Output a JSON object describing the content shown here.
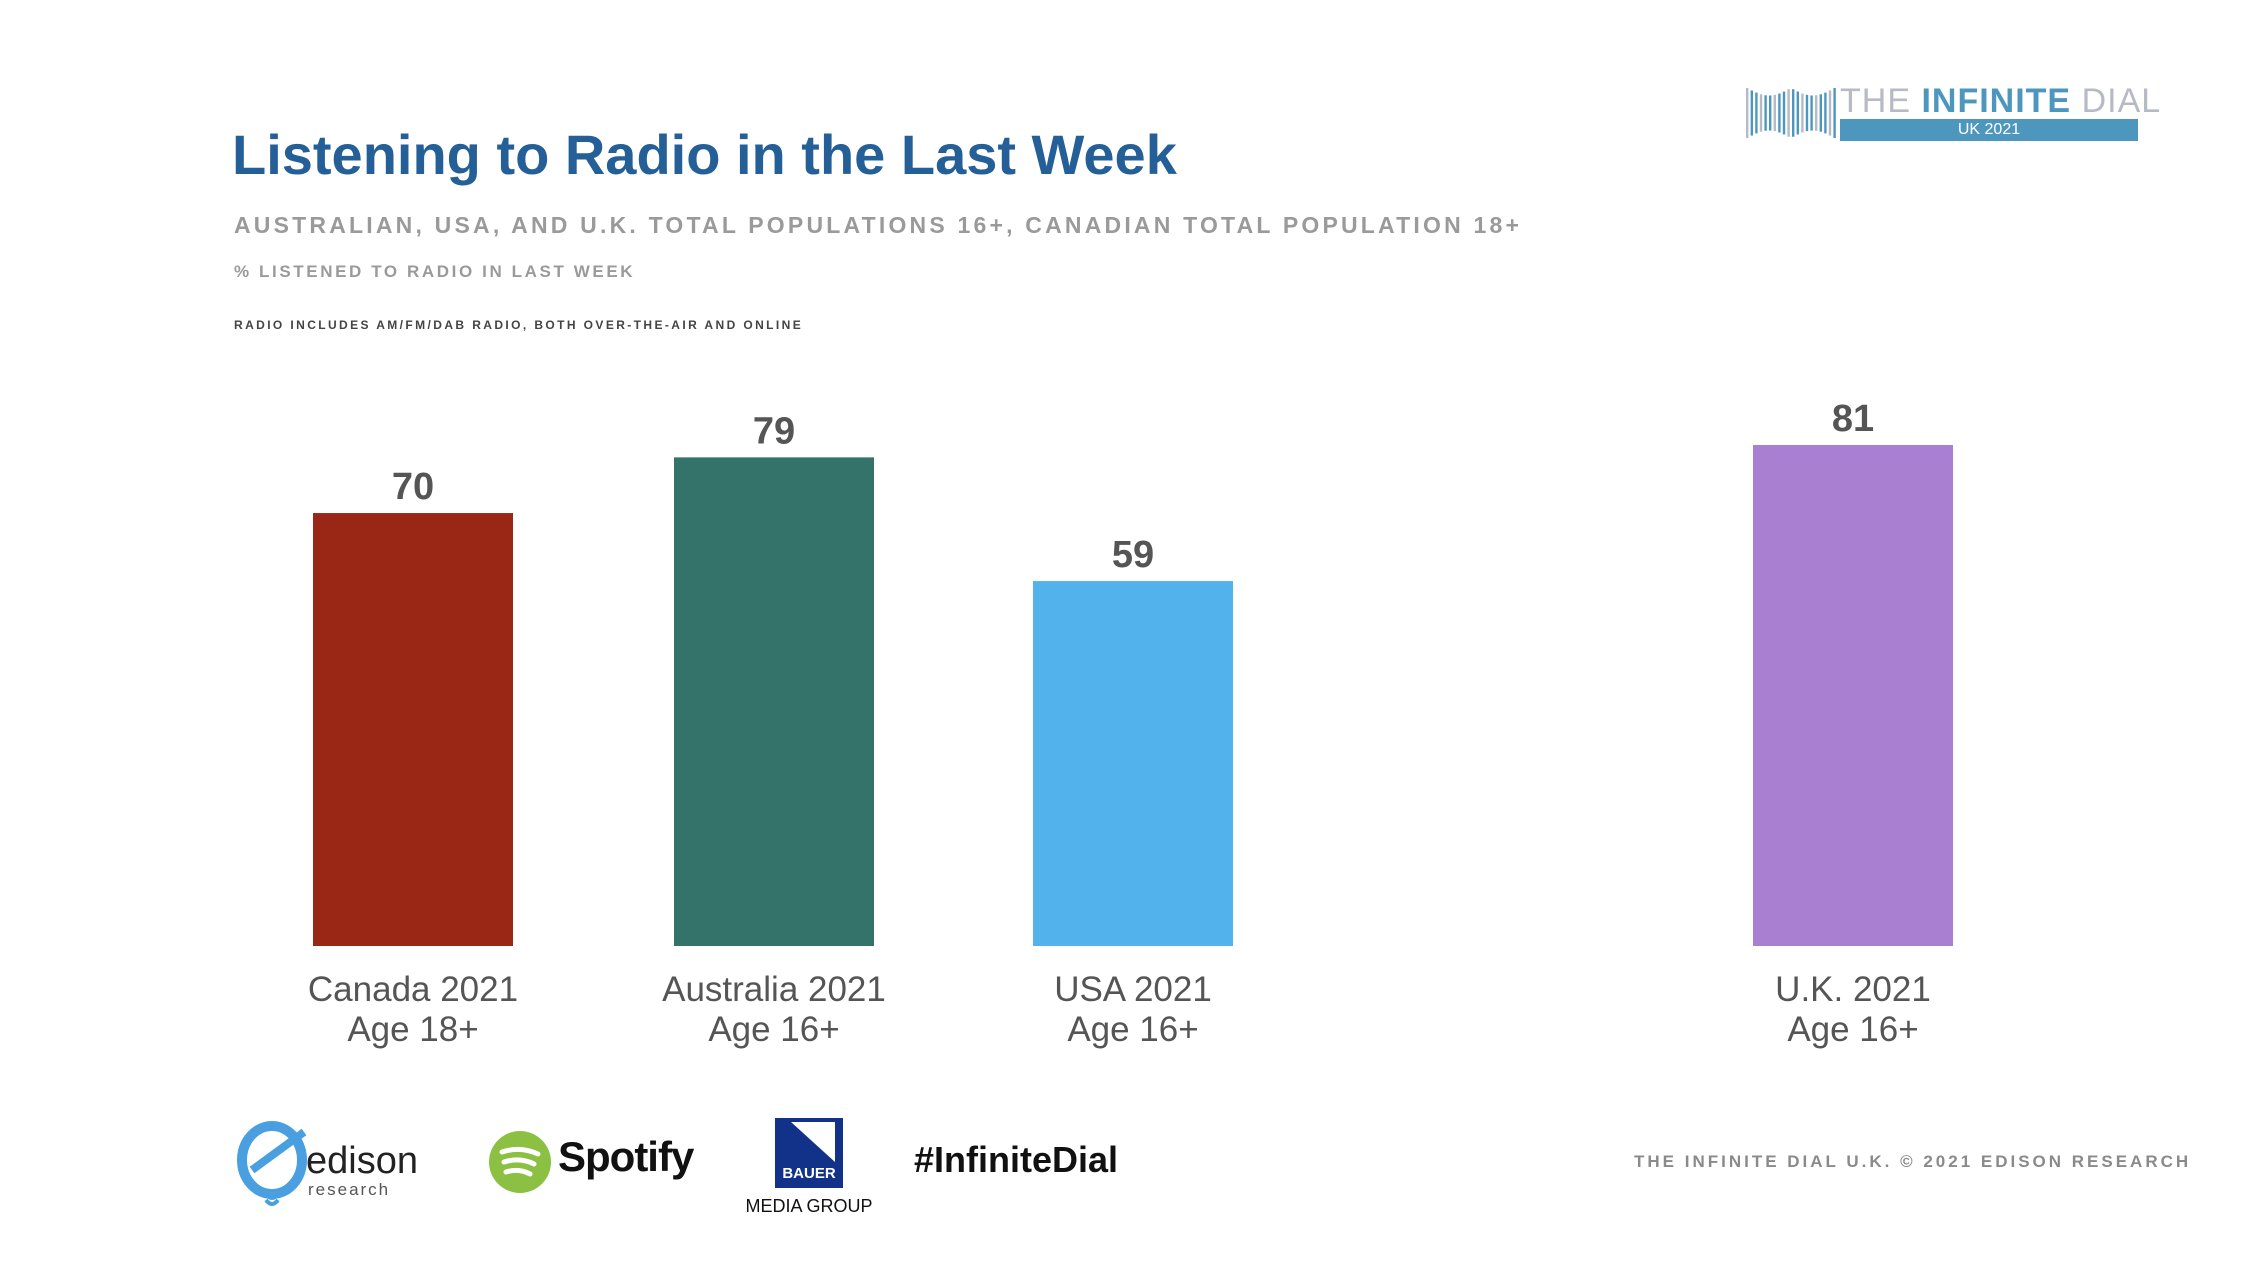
{
  "header": {
    "title": "Listening to Radio in the Last Week",
    "subtitle": "AUSTRALIAN, USA, AND U.K. TOTAL POPULATIONS 16+, CANADIAN TOTAL POPULATION 18+",
    "measure": "% LISTENED TO RADIO IN LAST WEEK",
    "note": "RADIO INCLUDES AM/FM/DAB RADIO, BOTH OVER-THE-AIR AND ONLINE"
  },
  "brand": {
    "logo_the": "THE",
    "logo_infinite": "INFINITE",
    "logo_dial": "DIAL",
    "logo_edition": "UK 2021"
  },
  "chart_data": {
    "type": "bar",
    "title": "Listening to Radio in the Last Week",
    "categories": [
      [
        "Canada 2021",
        "Age 18+"
      ],
      [
        "Australia 2021",
        "Age 16+"
      ],
      [
        "USA 2021",
        "Age 16+"
      ],
      [
        "U.K. 2021",
        "Age 16+"
      ]
    ],
    "values": [
      70,
      79,
      59,
      81
    ],
    "colors": [
      "#9a2715",
      "#337369",
      "#52b3ec",
      "#a97fd1"
    ],
    "ylim": [
      0,
      100
    ],
    "grid": false,
    "data_labels": true
  },
  "footer": {
    "edison_word": "edison",
    "edison_sub": "research",
    "spotify": "Spotify",
    "bauer": "BAUER",
    "bauer_sub": "MEDIA GROUP",
    "hashtag": "#InfiniteDial",
    "copyright": "THE INFINITE DIAL U.K.  © 2021 EDISON RESEARCH"
  }
}
